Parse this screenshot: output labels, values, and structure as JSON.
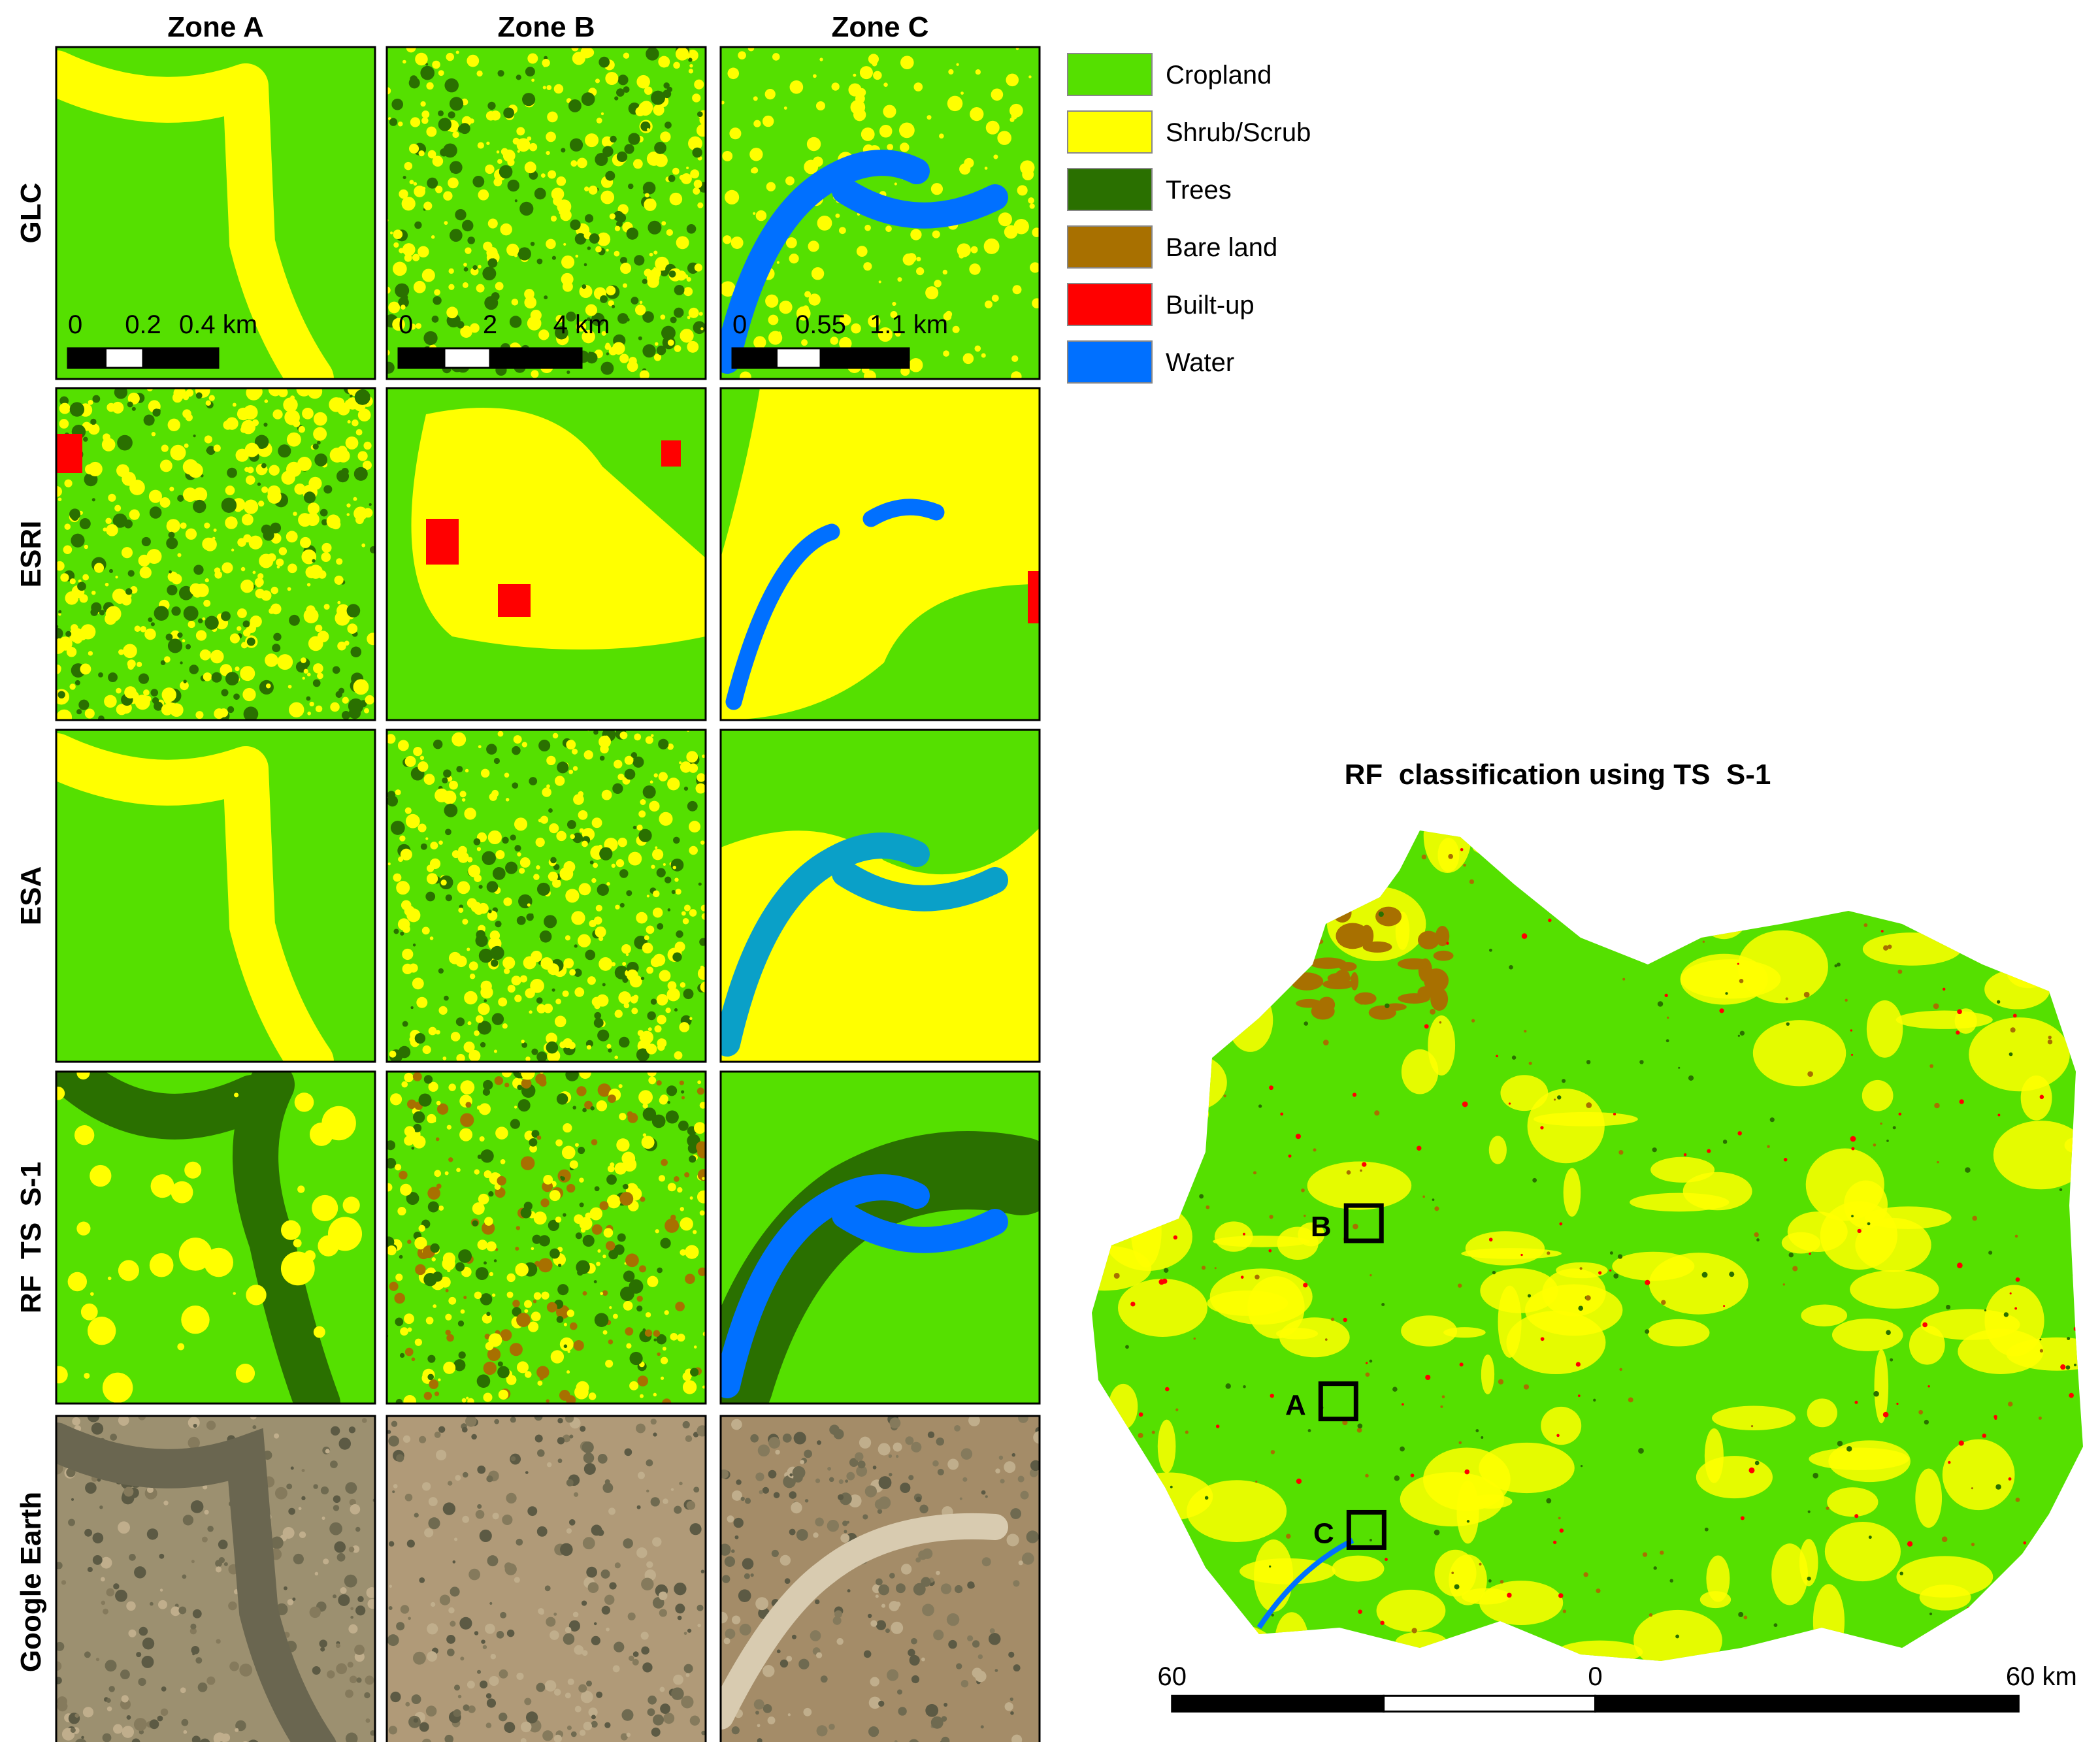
{
  "columns": [
    "Zone A",
    "Zone B",
    "Zone C"
  ],
  "rows": [
    "GLC",
    "ESRI",
    "ESA",
    "RF  TS  S-1",
    "Google Earth"
  ],
  "scale_bars": [
    {
      "labels": [
        "0",
        "0.2",
        "0.4 km"
      ]
    },
    {
      "labels": [
        "0",
        "2",
        "4 km"
      ]
    },
    {
      "labels": [
        "0",
        "0.55",
        "1.1 km"
      ]
    }
  ],
  "legend": [
    {
      "label": "Cropland",
      "color": "#55e000"
    },
    {
      "label": "Shrub/Scrub",
      "color": "#ffff00"
    },
    {
      "label": "Trees",
      "color": "#2a7000"
    },
    {
      "label": "Bare land",
      "color": "#a87000"
    },
    {
      "label": "Built-up",
      "color": "#ff0000"
    },
    {
      "label": "Water",
      "color": "#0070ff"
    }
  ],
  "map": {
    "title": "RF  classification using TS  S-1",
    "zones": [
      "B",
      "A",
      "C"
    ],
    "scale_labels": [
      "60",
      "0",
      "60 km"
    ]
  }
}
